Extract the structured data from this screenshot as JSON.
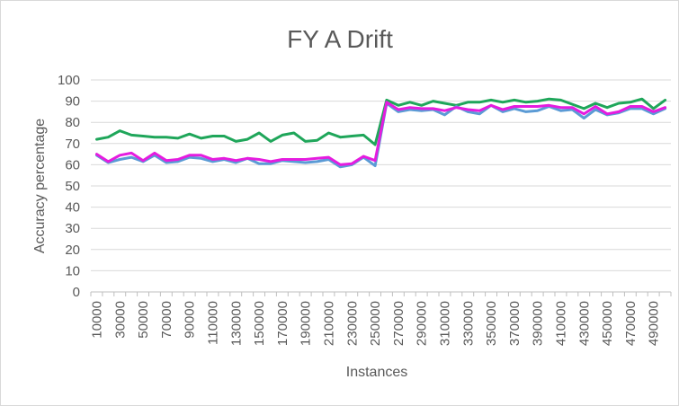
{
  "chart_data": {
    "type": "line",
    "title": "FY A Drift",
    "xlabel": "Instances",
    "ylabel": "Accuracy percentage",
    "ylim": [
      0,
      100
    ],
    "y_ticks": [
      0,
      10,
      20,
      30,
      40,
      50,
      60,
      70,
      80,
      90,
      100
    ],
    "grid": true,
    "legend": "none",
    "x": [
      10000,
      20000,
      30000,
      40000,
      50000,
      60000,
      70000,
      80000,
      90000,
      100000,
      110000,
      120000,
      130000,
      140000,
      150000,
      160000,
      170000,
      180000,
      190000,
      200000,
      210000,
      220000,
      230000,
      240000,
      250000,
      260000,
      270000,
      280000,
      290000,
      300000,
      310000,
      320000,
      330000,
      340000,
      350000,
      360000,
      370000,
      380000,
      390000,
      400000,
      410000,
      420000,
      430000,
      440000,
      450000,
      460000,
      470000,
      480000,
      490000,
      500000
    ],
    "x_tick_labels": [
      "10000",
      "30000",
      "50000",
      "70000",
      "90000",
      "110000",
      "130000",
      "150000",
      "170000",
      "190000",
      "210000",
      "230000",
      "250000",
      "270000",
      "290000",
      "310000",
      "330000",
      "350000",
      "370000",
      "390000",
      "410000",
      "430000",
      "450000",
      "470000",
      "490000"
    ],
    "series": [
      {
        "color": "#1fa65a",
        "values": [
          72,
          73,
          76,
          74,
          73.5,
          73,
          73,
          72.5,
          74.5,
          72.5,
          73.5,
          73.5,
          71,
          72,
          75,
          71,
          74,
          75,
          71,
          71.5,
          75,
          73,
          73.5,
          74,
          69.5,
          90.5,
          88,
          89.5,
          88,
          90,
          89,
          88,
          89.5,
          89.5,
          90.5,
          89.5,
          90.5,
          89.5,
          90,
          91,
          90.5,
          88.5,
          86.5,
          89,
          87,
          89,
          89.5,
          91,
          86.5,
          90.5
        ]
      },
      {
        "color": "#5b9bd5",
        "values": [
          64.5,
          61,
          62.5,
          63.5,
          61.5,
          64.5,
          61,
          61.5,
          63.5,
          63,
          61.5,
          62.5,
          61,
          63,
          60.5,
          60.5,
          62,
          61.5,
          61,
          61.5,
          62.5,
          59,
          60,
          63.5,
          59.5,
          89,
          85,
          86,
          85.5,
          86,
          83.5,
          87.5,
          85,
          84,
          88,
          85,
          86.5,
          85,
          85.5,
          87.5,
          85.5,
          86,
          82,
          86,
          83.5,
          84.5,
          86.5,
          86.5,
          84,
          86.5
        ]
      },
      {
        "color": "#e51cdf",
        "values": [
          65,
          61.5,
          64.5,
          65.5,
          62,
          65.5,
          62,
          62.5,
          64.5,
          64.5,
          62.5,
          63,
          62,
          63,
          62.5,
          61.5,
          62.5,
          62.5,
          62.5,
          63,
          63.5,
          60,
          60.5,
          64,
          62,
          89.5,
          86,
          87,
          86.5,
          86.5,
          85.5,
          87,
          86,
          85.5,
          88,
          86,
          87.5,
          87.5,
          87.5,
          88,
          87,
          87,
          84,
          87.5,
          84,
          85,
          87.5,
          87.5,
          85,
          87
        ]
      }
    ]
  }
}
